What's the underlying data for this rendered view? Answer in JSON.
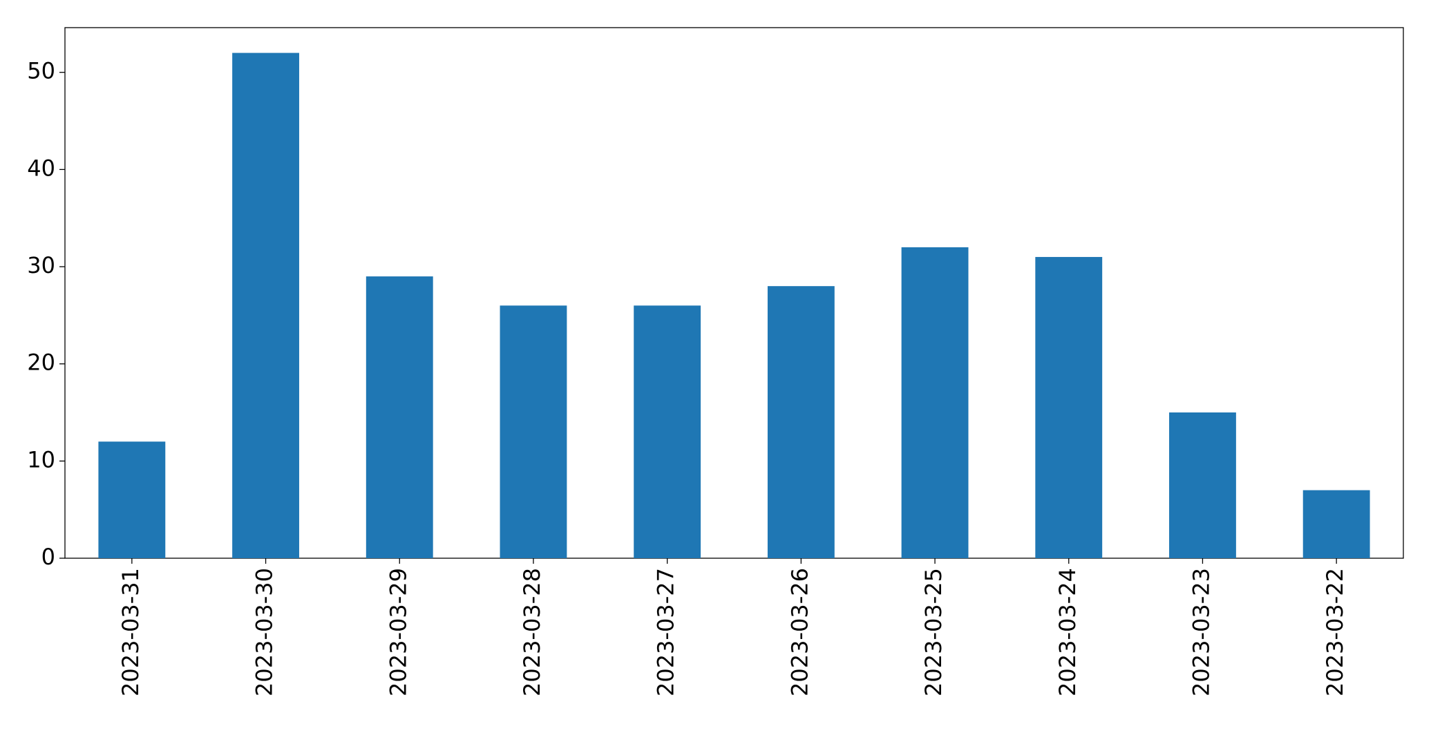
{
  "chart_data": {
    "type": "bar",
    "categories": [
      "2023-03-31",
      "2023-03-30",
      "2023-03-29",
      "2023-03-28",
      "2023-03-27",
      "2023-03-26",
      "2023-03-25",
      "2023-03-24",
      "2023-03-23",
      "2023-03-22"
    ],
    "values": [
      12,
      52,
      29,
      26,
      26,
      28,
      32,
      31,
      15,
      7
    ],
    "color": "#1f77b4",
    "ylim": [
      0,
      54.6
    ],
    "yticks": [
      0,
      10,
      20,
      30,
      40,
      50
    ],
    "grid": false
  }
}
